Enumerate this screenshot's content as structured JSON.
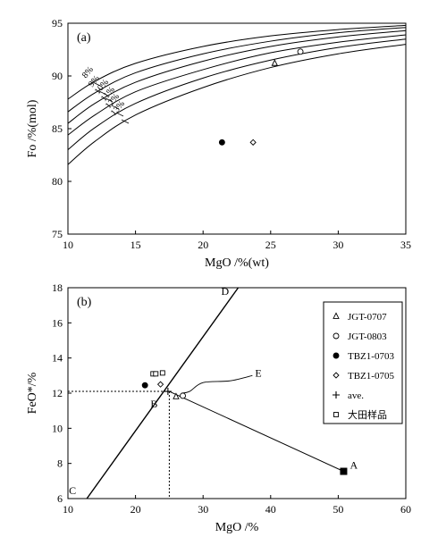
{
  "chart_data": [
    {
      "type": "line",
      "panel_label": "(a)",
      "xlabel": "MgO /%(wt)",
      "ylabel": "Fo /%(mol)",
      "xlim": [
        10,
        35
      ],
      "ylim": [
        75,
        95
      ],
      "xticks": [
        10,
        15,
        20,
        25,
        30,
        35
      ],
      "yticks": [
        75,
        80,
        85,
        90,
        95
      ],
      "grid": false,
      "curves": [
        {
          "label": "8%",
          "points": [
            [
              10,
              87.8
            ],
            [
              12,
              89.5
            ],
            [
              15,
              91.2
            ],
            [
              20,
              92.8
            ],
            [
              25,
              93.8
            ],
            [
              30,
              94.4
            ],
            [
              35,
              94.8
            ]
          ]
        },
        {
          "label": "9%",
          "points": [
            [
              10,
              86.6
            ],
            [
              12,
              88.4
            ],
            [
              15,
              90.3
            ],
            [
              20,
              92.1
            ],
            [
              25,
              93.3
            ],
            [
              30,
              94.1
            ],
            [
              35,
              94.6
            ]
          ]
        },
        {
          "label": "10%",
          "points": [
            [
              10,
              85.5
            ],
            [
              12,
              87.4
            ],
            [
              15,
              89.4
            ],
            [
              20,
              91.4
            ],
            [
              25,
              92.8
            ],
            [
              30,
              93.7
            ],
            [
              35,
              94.3
            ]
          ]
        },
        {
          "label": "11%",
          "points": [
            [
              10,
              84.4
            ],
            [
              12,
              86.3
            ],
            [
              15,
              88.5
            ],
            [
              20,
              90.6
            ],
            [
              25,
              92.2
            ],
            [
              30,
              93.2
            ],
            [
              35,
              93.9
            ]
          ]
        },
        {
          "label": "12%",
          "points": [
            [
              10,
              83.0
            ],
            [
              12,
              85.1
            ],
            [
              15,
              87.4
            ],
            [
              20,
              89.8
            ],
            [
              25,
              91.5
            ],
            [
              30,
              92.7
            ],
            [
              35,
              93.5
            ]
          ]
        },
        {
          "label": "13%",
          "points": [
            [
              10,
              81.6
            ],
            [
              12,
              83.8
            ],
            [
              15,
              86.3
            ],
            [
              20,
              88.9
            ],
            [
              25,
              90.8
            ],
            [
              30,
              92.1
            ],
            [
              35,
              93.0
            ]
          ]
        }
      ],
      "curve_labels": [
        "8%",
        "9%",
        "10%",
        "11%",
        "12%",
        "13%"
      ],
      "points": [
        {
          "name": "JGT-0707",
          "marker": "triangle-open",
          "x": 25.3,
          "y": 91.2
        },
        {
          "name": "JGT-0803",
          "marker": "circle-open",
          "x": 27.2,
          "y": 92.3
        },
        {
          "name": "TBZ1-0703",
          "marker": "circle-filled",
          "x": 21.4,
          "y": 83.7
        },
        {
          "name": "TBZ1-0705",
          "marker": "diamond-open",
          "x": 23.7,
          "y": 83.7
        }
      ]
    },
    {
      "type": "scatter",
      "panel_label": "(b)",
      "xlabel": "MgO /%",
      "ylabel": "FeO*/%",
      "xlim": [
        10,
        60
      ],
      "ylim": [
        6,
        18
      ],
      "xticks": [
        10,
        20,
        30,
        40,
        50,
        60
      ],
      "yticks": [
        6,
        8,
        10,
        12,
        14,
        16,
        18
      ],
      "grid": false,
      "legend_position": "right",
      "legend": [
        {
          "label": "JGT-0707",
          "marker": "triangle-open"
        },
        {
          "label": "JGT-0803",
          "marker": "circle-open"
        },
        {
          "label": "TBZ1-0703",
          "marker": "circle-filled"
        },
        {
          "label": "TBZ1-0705",
          "marker": "diamond-open"
        },
        {
          "label": "ave.",
          "marker": "plus"
        },
        {
          "label": "大田样品",
          "marker": "square-open"
        }
      ],
      "line_CD": {
        "from": [
          12.8,
          6.0
        ],
        "to": [
          35.2,
          18.0
        ]
      },
      "line_AB": {
        "from": [
          50.8,
          7.55
        ],
        "to": [
          25.0,
          12.1
        ]
      },
      "point_A": {
        "label": "A",
        "x": 50.8,
        "y": 7.55
      },
      "point_B": {
        "label": "B",
        "x": 25.0,
        "y": 12.1
      },
      "label_C": "C",
      "label_D": "D",
      "label_E": "E",
      "callout_E": [
        [
          26.8,
          12.0
        ],
        [
          28.0,
          12.1
        ],
        [
          30.0,
          12.6
        ],
        [
          34.0,
          12.7
        ],
        [
          37.3,
          13.0
        ]
      ],
      "dotted_guides": {
        "x": 25.0,
        "y": 12.1
      },
      "points": [
        {
          "name": "JGT-0707",
          "marker": "triangle-open",
          "x": 26.0,
          "y": 11.8
        },
        {
          "name": "JGT-0803",
          "marker": "circle-open",
          "x": 27.0,
          "y": 11.85
        },
        {
          "name": "TBZ1-0703",
          "marker": "circle-filled",
          "x": 21.4,
          "y": 12.45
        },
        {
          "name": "TBZ1-0705",
          "marker": "diamond-open",
          "x": 23.7,
          "y": 12.5
        },
        {
          "name": "ave.",
          "marker": "plus",
          "x": 24.8,
          "y": 12.1
        },
        {
          "name": "大田样品",
          "marker": "square-open",
          "x": 22.6,
          "y": 13.1
        },
        {
          "name": "大田样品",
          "marker": "square-open",
          "x": 23.0,
          "y": 13.1
        },
        {
          "name": "大田样品",
          "marker": "square-open",
          "x": 24.0,
          "y": 13.15
        }
      ]
    }
  ]
}
